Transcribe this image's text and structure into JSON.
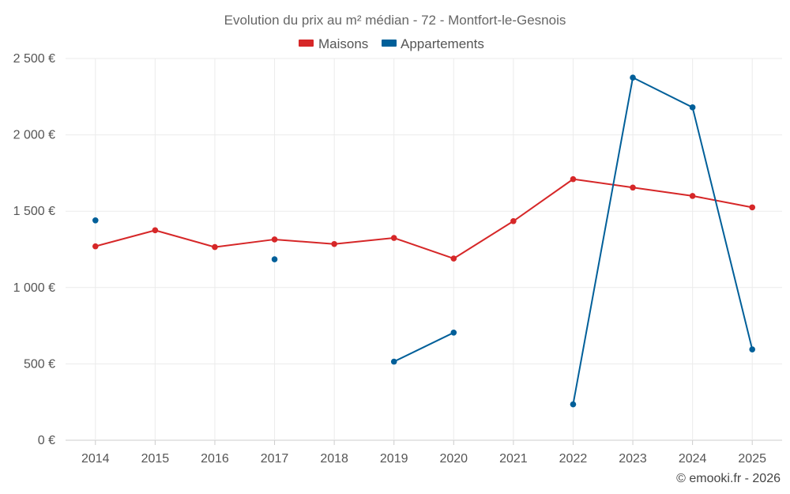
{
  "chart_data": {
    "type": "line",
    "title": "Evolution du prix au m² médian - 72 - Montfort-le-Gesnois",
    "xlabel": "",
    "ylabel": "",
    "categories": [
      "2014",
      "2015",
      "2016",
      "2017",
      "2018",
      "2019",
      "2020",
      "2021",
      "2022",
      "2023",
      "2024",
      "2025"
    ],
    "ylim": [
      0,
      2500
    ],
    "yticks": [
      0,
      500,
      1000,
      1500,
      2000,
      2500
    ],
    "ytick_labels": [
      "0 €",
      "500 €",
      "1 000 €",
      "1 500 €",
      "2 000 €",
      "2 500 €"
    ],
    "grid": true,
    "legend_position": "top-center",
    "series": [
      {
        "name": "Maisons",
        "color": "#d62728",
        "values": [
          1270,
          1375,
          1265,
          1315,
          1285,
          1325,
          1190,
          1435,
          1710,
          1655,
          1600,
          1525
        ]
      },
      {
        "name": "Appartements",
        "color": "#005f99",
        "values": [
          1440,
          null,
          null,
          1185,
          null,
          515,
          705,
          null,
          235,
          2375,
          2180,
          595
        ]
      }
    ],
    "credit": "© emooki.fr - 2026"
  }
}
